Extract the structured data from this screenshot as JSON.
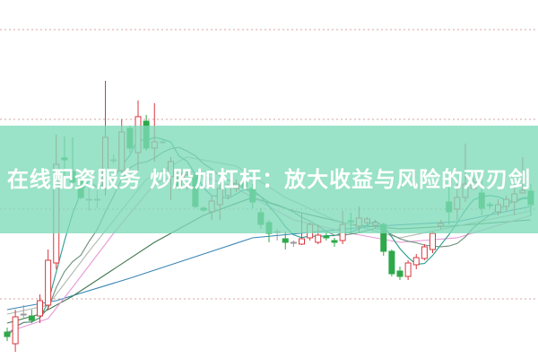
{
  "title": "在线配资服务 炒股加杠杆：放大收益与风险的双刃剑",
  "colors": {
    "up": "#d9383f",
    "down": "#2ea84a",
    "neutral": "#9a9a9a",
    "grid": "#d9a3a3",
    "banner": "#7ddab9"
  },
  "chart_data": {
    "type": "candlestick",
    "ylim": [
      0,
      40
    ],
    "grid": true,
    "gridlines": [
      6.7,
      16.7,
      26.7,
      36.7
    ],
    "ohlc": [
      [
        3.0,
        3.5,
        2.0,
        2.5
      ],
      [
        1.7,
        5.5,
        0.8,
        4.7
      ],
      [
        5.0,
        6.0,
        4.5,
        5.0
      ],
      [
        4.8,
        5.5,
        4.0,
        4.3
      ],
      [
        4.8,
        7.2,
        4.0,
        6.5
      ],
      [
        6.0,
        12.2,
        5.5,
        11.0
      ],
      [
        10.7,
        25.0,
        10.0,
        21.7
      ],
      [
        22.4,
        24.8,
        20.0,
        22.2
      ],
      [
        20.9,
        24.7,
        19.5,
        19.7
      ],
      [
        20.0,
        20.2,
        17.8,
        18.0
      ],
      [
        17.8,
        19.0,
        16.5,
        17.8
      ],
      [
        17.8,
        18.8,
        16.8,
        17.8
      ],
      [
        19.0,
        31.0,
        18.2,
        24.7
      ],
      [
        22.2,
        22.8,
        21.8,
        22.2
      ],
      [
        21.0,
        26.7,
        20.5,
        25.3
      ],
      [
        25.7,
        26.0,
        23.0,
        23.5
      ],
      [
        23.0,
        28.8,
        21.0,
        27.0
      ],
      [
        26.5,
        27.2,
        23.2,
        23.5
      ],
      [
        23.5,
        28.5,
        22.0,
        24.2
      ],
      [
        24.2,
        24.5,
        24.0,
        24.2
      ],
      [
        20.3,
        22.5,
        17.7,
        22.0
      ],
      [
        20.7,
        21.0,
        18.8,
        19.2
      ],
      [
        19.2,
        21.0,
        18.8,
        20.5
      ],
      [
        20.5,
        20.8,
        16.8,
        17.0
      ],
      [
        16.8,
        17.0,
        16.4,
        16.6
      ],
      [
        16.4,
        18.2,
        15.5,
        17.6
      ],
      [
        17.2,
        19.5,
        15.5,
        19.0
      ],
      [
        18.2,
        19.5,
        17.8,
        19.2
      ],
      [
        19.0,
        20.0,
        18.6,
        19.5
      ],
      [
        19.7,
        20.2,
        18.8,
        19.2
      ],
      [
        19.0,
        19.5,
        16.8,
        17.5
      ],
      [
        16.3,
        16.8,
        14.5,
        15.0
      ],
      [
        15.2,
        15.5,
        13.0,
        14.0
      ],
      [
        14.2,
        14.5,
        13.2,
        14.2
      ],
      [
        13.4,
        14.2,
        12.2,
        13.0
      ],
      [
        13.0,
        13.2,
        12.5,
        13.0
      ],
      [
        12.8,
        16.3,
        12.7,
        13.4
      ],
      [
        13.5,
        15.2,
        13.2,
        15.0
      ],
      [
        13.0,
        15.0,
        12.8,
        13.8
      ],
      [
        13.7,
        14.2,
        13.2,
        13.5
      ],
      [
        13.2,
        13.5,
        12.5,
        13.0
      ],
      [
        13.2,
        16.5,
        12.8,
        15.0
      ],
      [
        15.4,
        16.3,
        14.0,
        15.3
      ],
      [
        14.8,
        17.0,
        14.0,
        15.7
      ],
      [
        15.2,
        15.8,
        14.8,
        15.6
      ],
      [
        14.9,
        15.5,
        14.5,
        15.2
      ],
      [
        15.0,
        15.2,
        11.5,
        12.0
      ],
      [
        12.0,
        12.2,
        9.2,
        9.5
      ],
      [
        9.8,
        10.3,
        8.8,
        9.2
      ],
      [
        9.2,
        11.0,
        8.8,
        10.7
      ],
      [
        10.5,
        11.7,
        10.0,
        11.3
      ],
      [
        11.2,
        12.8,
        11.0,
        12.5
      ],
      [
        12.2,
        14.2,
        11.8,
        14.0
      ],
      [
        14.8,
        15.5,
        14.5,
        15.1
      ],
      [
        17.5,
        19.5,
        15.0,
        16.4
      ],
      [
        16.7,
        19.5,
        15.5,
        18.0
      ],
      [
        18.0,
        24.0,
        17.5,
        19.5
      ],
      [
        19.0,
        20.2,
        18.8,
        19.7
      ],
      [
        18.5,
        20.2,
        16.0,
        16.8
      ],
      [
        17.2,
        17.5,
        16.8,
        17.1
      ],
      [
        16.4,
        17.8,
        16.0,
        17.2
      ],
      [
        17.0,
        18.2,
        16.5,
        17.8
      ],
      [
        17.5,
        19.5,
        16.0,
        18.4
      ],
      [
        18.5,
        22.5,
        18.4,
        18.8
      ],
      [
        18.7,
        19.5,
        16.0,
        17.2
      ]
    ],
    "computed_ma": [
      {
        "period": 5,
        "color": "#2a9d8f"
      },
      {
        "period": 10,
        "color": "#6b8f7a"
      }
    ],
    "lines": [
      {
        "color": "#3a86b5",
        "points": [
          [
            0,
            5.5
          ],
          [
            6,
            6.5
          ],
          [
            15,
            9
          ],
          [
            30,
            13.5
          ],
          [
            45,
            14.8
          ],
          [
            55,
            15.3
          ],
          [
            64,
            17
          ]
        ]
      },
      {
        "color": "#3f7a4f",
        "points": [
          [
            0,
            4
          ],
          [
            4,
            5
          ],
          [
            8,
            7
          ],
          [
            13,
            10
          ],
          [
            18,
            13
          ],
          [
            24,
            16
          ],
          [
            30,
            18
          ],
          [
            35,
            16.5
          ],
          [
            42,
            15
          ],
          [
            48,
            14.5
          ],
          [
            54,
            14.8
          ],
          [
            64,
            15.5
          ]
        ]
      },
      {
        "color": "#e79ad6",
        "points": [
          [
            0,
            3
          ],
          [
            5,
            4.5
          ],
          [
            8,
            8
          ],
          [
            13,
            14
          ],
          [
            18,
            19.5
          ],
          [
            22,
            21
          ],
          [
            28,
            19
          ],
          [
            35,
            15.5
          ],
          [
            42,
            14
          ],
          [
            48,
            13
          ],
          [
            55,
            13.5
          ],
          [
            64,
            16
          ]
        ]
      },
      {
        "color": "#b0b8b4",
        "points": [
          [
            0,
            5
          ],
          [
            5,
            6
          ],
          [
            10,
            12
          ],
          [
            17,
            20
          ],
          [
            22,
            22.5
          ],
          [
            28,
            21.5
          ],
          [
            34,
            18
          ],
          [
            40,
            15.5
          ],
          [
            48,
            13.5
          ],
          [
            56,
            15
          ],
          [
            64,
            16.5
          ]
        ]
      }
    ]
  }
}
